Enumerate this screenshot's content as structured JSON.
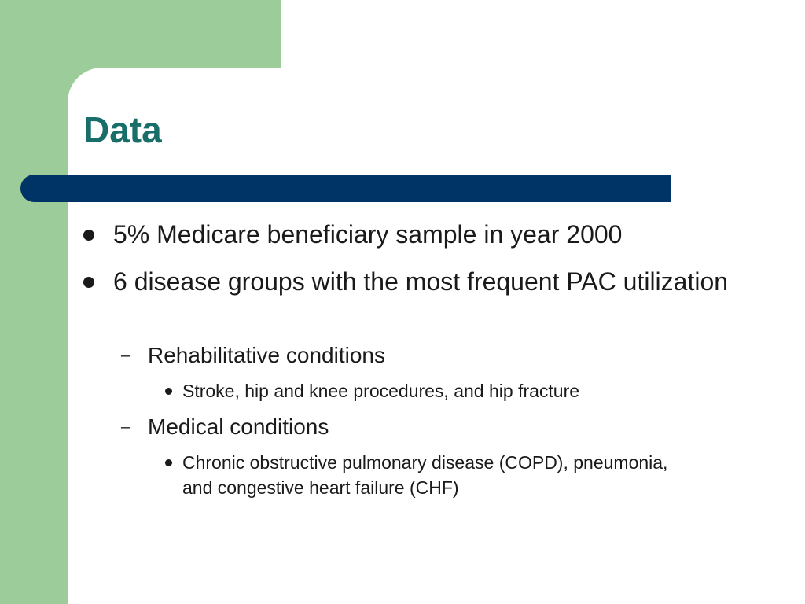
{
  "slide": {
    "title": "Data",
    "bullets": {
      "b1": "5% Medicare beneficiary sample in year 2000",
      "b2": "6 disease groups with the most frequent PAC utilization",
      "sub1": "Rehabilitative conditions",
      "sub1_item": "Stroke, hip and knee procedures, and hip fracture",
      "sub2": "Medical conditions",
      "sub2_item": "Chronic obstructive pulmonary disease (COPD), pneumonia, and congestive heart failure (CHF)",
      "dash": "–"
    }
  },
  "colors": {
    "title": "#1a6e6a",
    "bar": "#003366",
    "accent_green": "#9ccc9a"
  }
}
